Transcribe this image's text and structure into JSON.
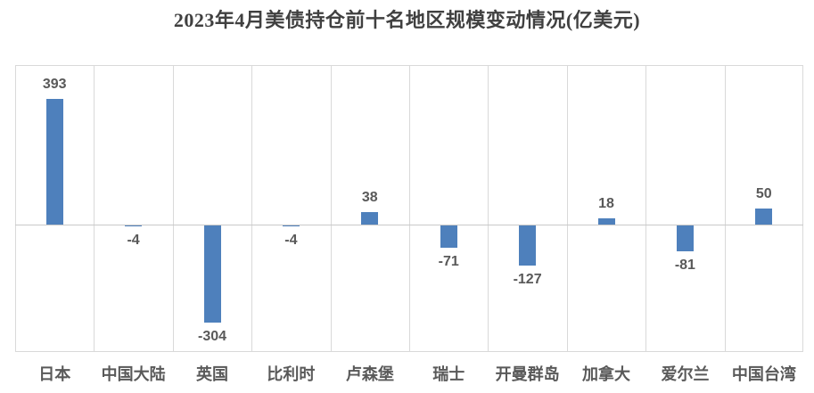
{
  "chart_data": {
    "type": "bar",
    "title": "2023年4月美债持仓前十名地区规模变动情况(亿美元)",
    "categories": [
      "日本",
      "中国大陆",
      "英国",
      "比利时",
      "卢森堡",
      "瑞士",
      "开曼群岛",
      "加拿大",
      "爱尔兰",
      "中国台湾"
    ],
    "values": [
      393,
      -4,
      -304,
      -4,
      38,
      -71,
      -127,
      18,
      -81,
      50
    ],
    "data_labels": [
      "393",
      "-4",
      "-304",
      "-4",
      "38",
      "-71",
      "-127",
      "18",
      "-81",
      "50"
    ],
    "xlabel": "",
    "ylabel": "",
    "ylim": [
      -400,
      500
    ],
    "grid": "vertical-only",
    "legend": "none",
    "colors": {
      "bar": "#4e80bc",
      "gridline": "#d9d9d9",
      "zero_line": "#c9c9c9",
      "value_label": "#595959",
      "category_label": "#595959",
      "title": "#404040"
    }
  }
}
